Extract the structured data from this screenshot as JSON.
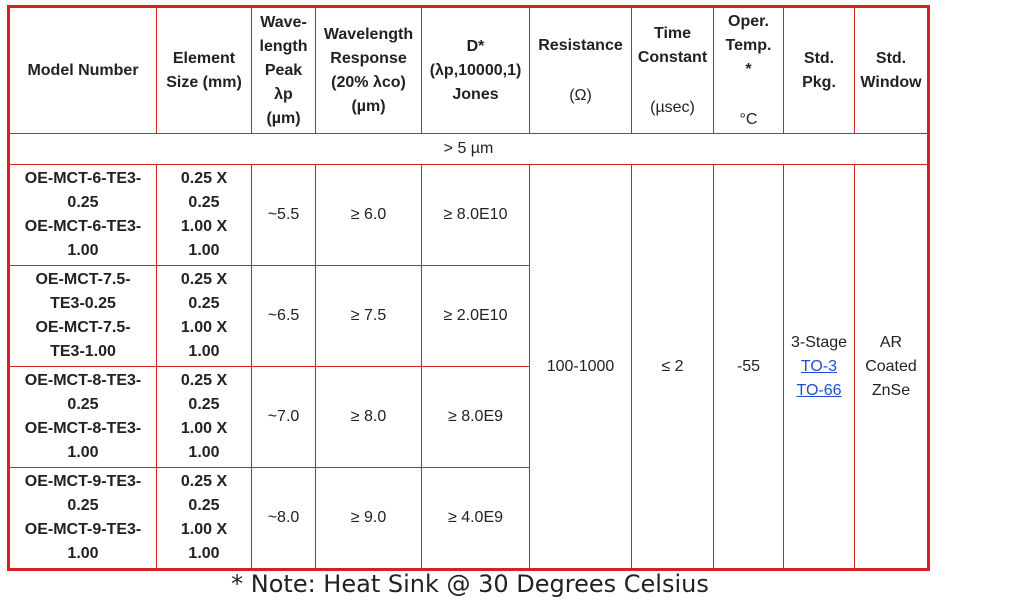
{
  "table": {
    "header": [
      [
        "Model Number"
      ],
      [
        "Element",
        "Size (mm)"
      ],
      [
        "Wave-",
        "length",
        "Peak",
        "λp",
        "(µm)"
      ],
      [
        "Wavelength",
        "Response",
        "(20% λco)",
        "(µm)"
      ],
      [
        "D*",
        "(λp,10000,1)",
        "Jones"
      ],
      [
        "Resistance",
        "(Ω)"
      ],
      [
        "Time",
        "Constant",
        "(µsec)"
      ],
      [
        "Oper.",
        "Temp.",
        "*",
        "°C"
      ],
      [
        "Std.",
        "Pkg."
      ],
      [
        "Std.",
        "Window"
      ]
    ],
    "section": "> 5 µm",
    "rows": [
      {
        "model": [
          "OE-MCT-6-TE3-",
          "0.25",
          "OE-MCT-6-TE3-",
          "1.00"
        ],
        "size": [
          "0.25 X",
          "0.25",
          "1.00 X",
          "1.00"
        ],
        "peak": "~5.5",
        "response": "≥ 6.0",
        "dstar": "≥ 8.0E10"
      },
      {
        "model": [
          "OE-MCT-7.5-",
          "TE3-0.25",
          "OE-MCT-7.5-",
          "TE3-1.00"
        ],
        "size": [
          "0.25 X",
          "0.25",
          "1.00 X",
          "1.00"
        ],
        "peak": "~6.5",
        "response": "≥ 7.5",
        "dstar": "≥ 2.0E10"
      },
      {
        "model": [
          "OE-MCT-8-TE3-",
          "0.25",
          "OE-MCT-8-TE3-",
          "1.00"
        ],
        "size": [
          "0.25 X",
          "0.25",
          "1.00 X",
          "1.00"
        ],
        "peak": "~7.0",
        "response": "≥ 8.0",
        "dstar": "≥ 8.0E9"
      },
      {
        "model": [
          "OE-MCT-9-TE3-",
          "0.25",
          "OE-MCT-9-TE3-",
          "1.00"
        ],
        "size": [
          "0.25 X",
          "0.25",
          "1.00 X",
          "1.00"
        ],
        "peak": "~8.0",
        "response": "≥ 9.0",
        "dstar": "≥ 4.0E9"
      }
    ],
    "shared": {
      "resistance": "100-1000",
      "time_constant": "≤ 2",
      "temp": "-55",
      "package": [
        "3-Stage",
        "TO-3",
        "TO-66"
      ],
      "window": [
        "AR",
        "Coated",
        "ZnSe"
      ]
    },
    "note": "* Note: Heat Sink @ 30 Degrees Celsius"
  }
}
